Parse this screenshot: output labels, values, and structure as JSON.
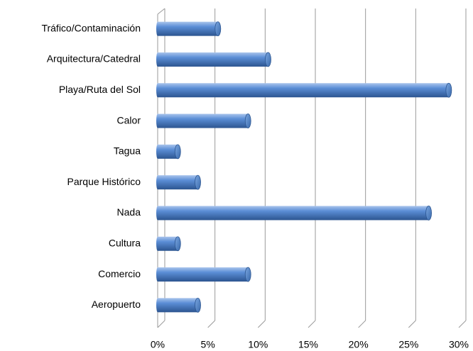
{
  "chart_data": {
    "type": "bar",
    "orientation": "horizontal",
    "categories": [
      "Tráfico/Contaminación",
      "Arquitectura/Catedral",
      "Playa/Ruta del Sol",
      "Calor",
      "Tagua",
      "Parque Histórico",
      "Nada",
      "Cultura",
      "Comercio",
      "Aeropuerto"
    ],
    "values": [
      6,
      11,
      29,
      9,
      2,
      4,
      27,
      2,
      9,
      4
    ],
    "color": "#4f81bd",
    "xlim": [
      0,
      30
    ],
    "xticks": [
      {
        "value": 0,
        "label": "0%"
      },
      {
        "value": 5,
        "label": "5%"
      },
      {
        "value": 10,
        "label": "10%"
      },
      {
        "value": 15,
        "label": "15%"
      },
      {
        "value": 20,
        "label": "20%"
      },
      {
        "value": 25,
        "label": "25%"
      },
      {
        "value": 30,
        "label": "30%"
      }
    ],
    "grid": true
  }
}
